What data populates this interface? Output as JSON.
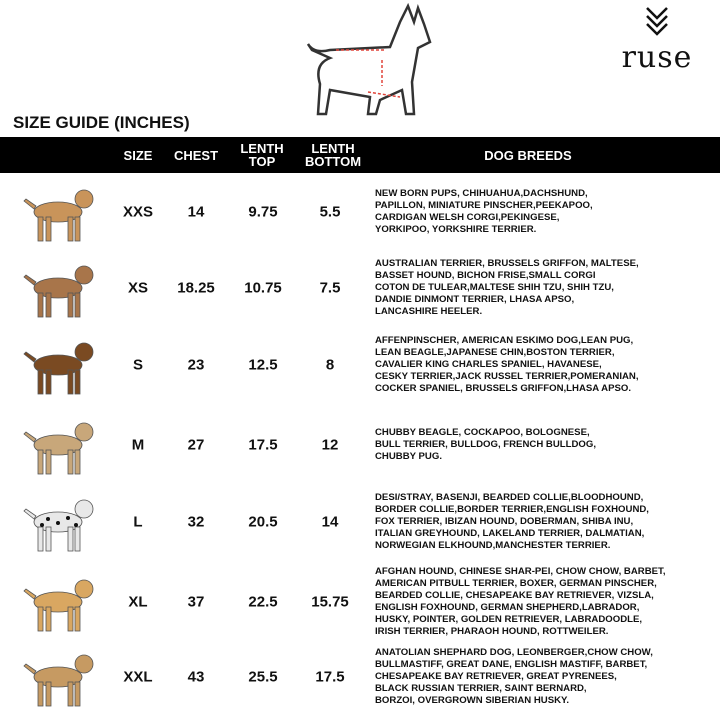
{
  "brand": {
    "name": "ruse",
    "icon": "chevron-stack-icon"
  },
  "diagram": {
    "icon": "dog-measurement-outline",
    "arrow_color": "#e0443a"
  },
  "title": "SIZE GUIDE (INCHES)",
  "headers": {
    "size": "SIZE",
    "chest": "CHEST",
    "top_l1": "LENTH",
    "top_l2": "TOP",
    "bottom_l1": "LENTH",
    "bottom_l2": "BOTTOM",
    "breeds": "DOG BREEDS"
  },
  "rows": [
    {
      "size": "XXS",
      "chest": "14",
      "top": "9.75",
      "bottom": "5.5",
      "dog": "chihuahua",
      "breeds": [
        "NEW BORN PUPS, CHIHUAHUA,DACHSHUND,",
        "PAPILLON, MINIATURE PINSCHER,PEEKAPOO,",
        "CARDIGAN WELSH CORGI,PEKINGESE,",
        "YORKIPOO, YORKSHIRE TERRIER."
      ]
    },
    {
      "size": "XS",
      "chest": "18.25",
      "top": "10.75",
      "bottom": "7.5",
      "dog": "shih-tzu",
      "breeds": [
        "AUSTRALIAN TERRIER, BRUSSELS GRIFFON, MALTESE,",
        "BASSET HOUND, BICHON FRISE,SMALL CORGI",
        "COTON DE TULEAR,MALTESE SHIH TZU, SHIH TZU,",
        "DANDIE DINMONT TERRIER, LHASA APSO,",
        "LANCASHIRE HEELER."
      ]
    },
    {
      "size": "S",
      "chest": "23",
      "top": "12.5",
      "bottom": "8",
      "dog": "beagle",
      "breeds": [
        "AFFENPINSCHER, AMERICAN ESKIMO DOG,LEAN PUG,",
        "LEAN BEAGLE,JAPANESE CHIN,BOSTON TERRIER,",
        "CAVALIER KING CHARLES SPANIEL, HAVANESE,",
        "CESKY TERRIER,JACK RUSSEL TERRIER,POMERANIAN,",
        "COCKER SPANIEL, BRUSSELS GRIFFON,LHASA APSO."
      ]
    },
    {
      "size": "M",
      "chest": "27",
      "top": "17.5",
      "bottom": "12",
      "dog": "pug",
      "breeds": [
        "CHUBBY BEAGLE, COCKAPOO, BOLOGNESE,",
        "BULL TERRIER, BULLDOG, FRENCH BULLDOG,",
        "CHUBBY PUG."
      ]
    },
    {
      "size": "L",
      "chest": "32",
      "top": "20.5",
      "bottom": "14",
      "dog": "dalmatian",
      "breeds": [
        "DESI/STRAY, BASENJI, BEARDED COLLIE,BLOODHOUND,",
        "BORDER COLLIE,BORDER TERRIER,ENGLISH FOXHOUND,",
        "FOX TERRIER, IBIZAN HOUND, DOBERMAN, SHIBA INU,",
        "ITALIAN GREYHOUND, LAKELAND TERRIER, DALMATIAN,",
        "NORWEGIAN ELKHOUND,MANCHESTER TERRIER."
      ]
    },
    {
      "size": "XL",
      "chest": "37",
      "top": "22.5",
      "bottom": "15.75",
      "dog": "golden-retriever",
      "breeds": [
        "AFGHAN HOUND, CHINESE SHAR-PEI, CHOW CHOW, BARBET,",
        "AMERICAN PITBULL TERRIER, BOXER, GERMAN PINSCHER,",
        "BEARDED COLLIE, CHESAPEAKE BAY RETRIEVER, VIZSLA,",
        "ENGLISH FOXHOUND, GERMAN SHEPHERD,LABRADOR,",
        "HUSKY, POINTER, GOLDEN RETRIEVER, LABRADOODLE,",
        "IRISH TERRIER, PHARAOH HOUND, ROTTWEILER."
      ]
    },
    {
      "size": "XXL",
      "chest": "43",
      "top": "25.5",
      "bottom": "17.5",
      "dog": "great-dane",
      "breeds": [
        "ANATOLIAN SHEPHARD DOG, LEONBERGER,CHOW CHOW,",
        "BULLMASTIFF, GREAT DANE, ENGLISH MASTIFF, BARBET,",
        "CHESAPEAKE BAY RETRIEVER, GREAT PYRENEES,",
        "BLACK RUSSIAN TERRIER, SAINT BERNARD,",
        "BORZOI, OVERGROWN SIBERIAN HUSKY."
      ]
    }
  ]
}
